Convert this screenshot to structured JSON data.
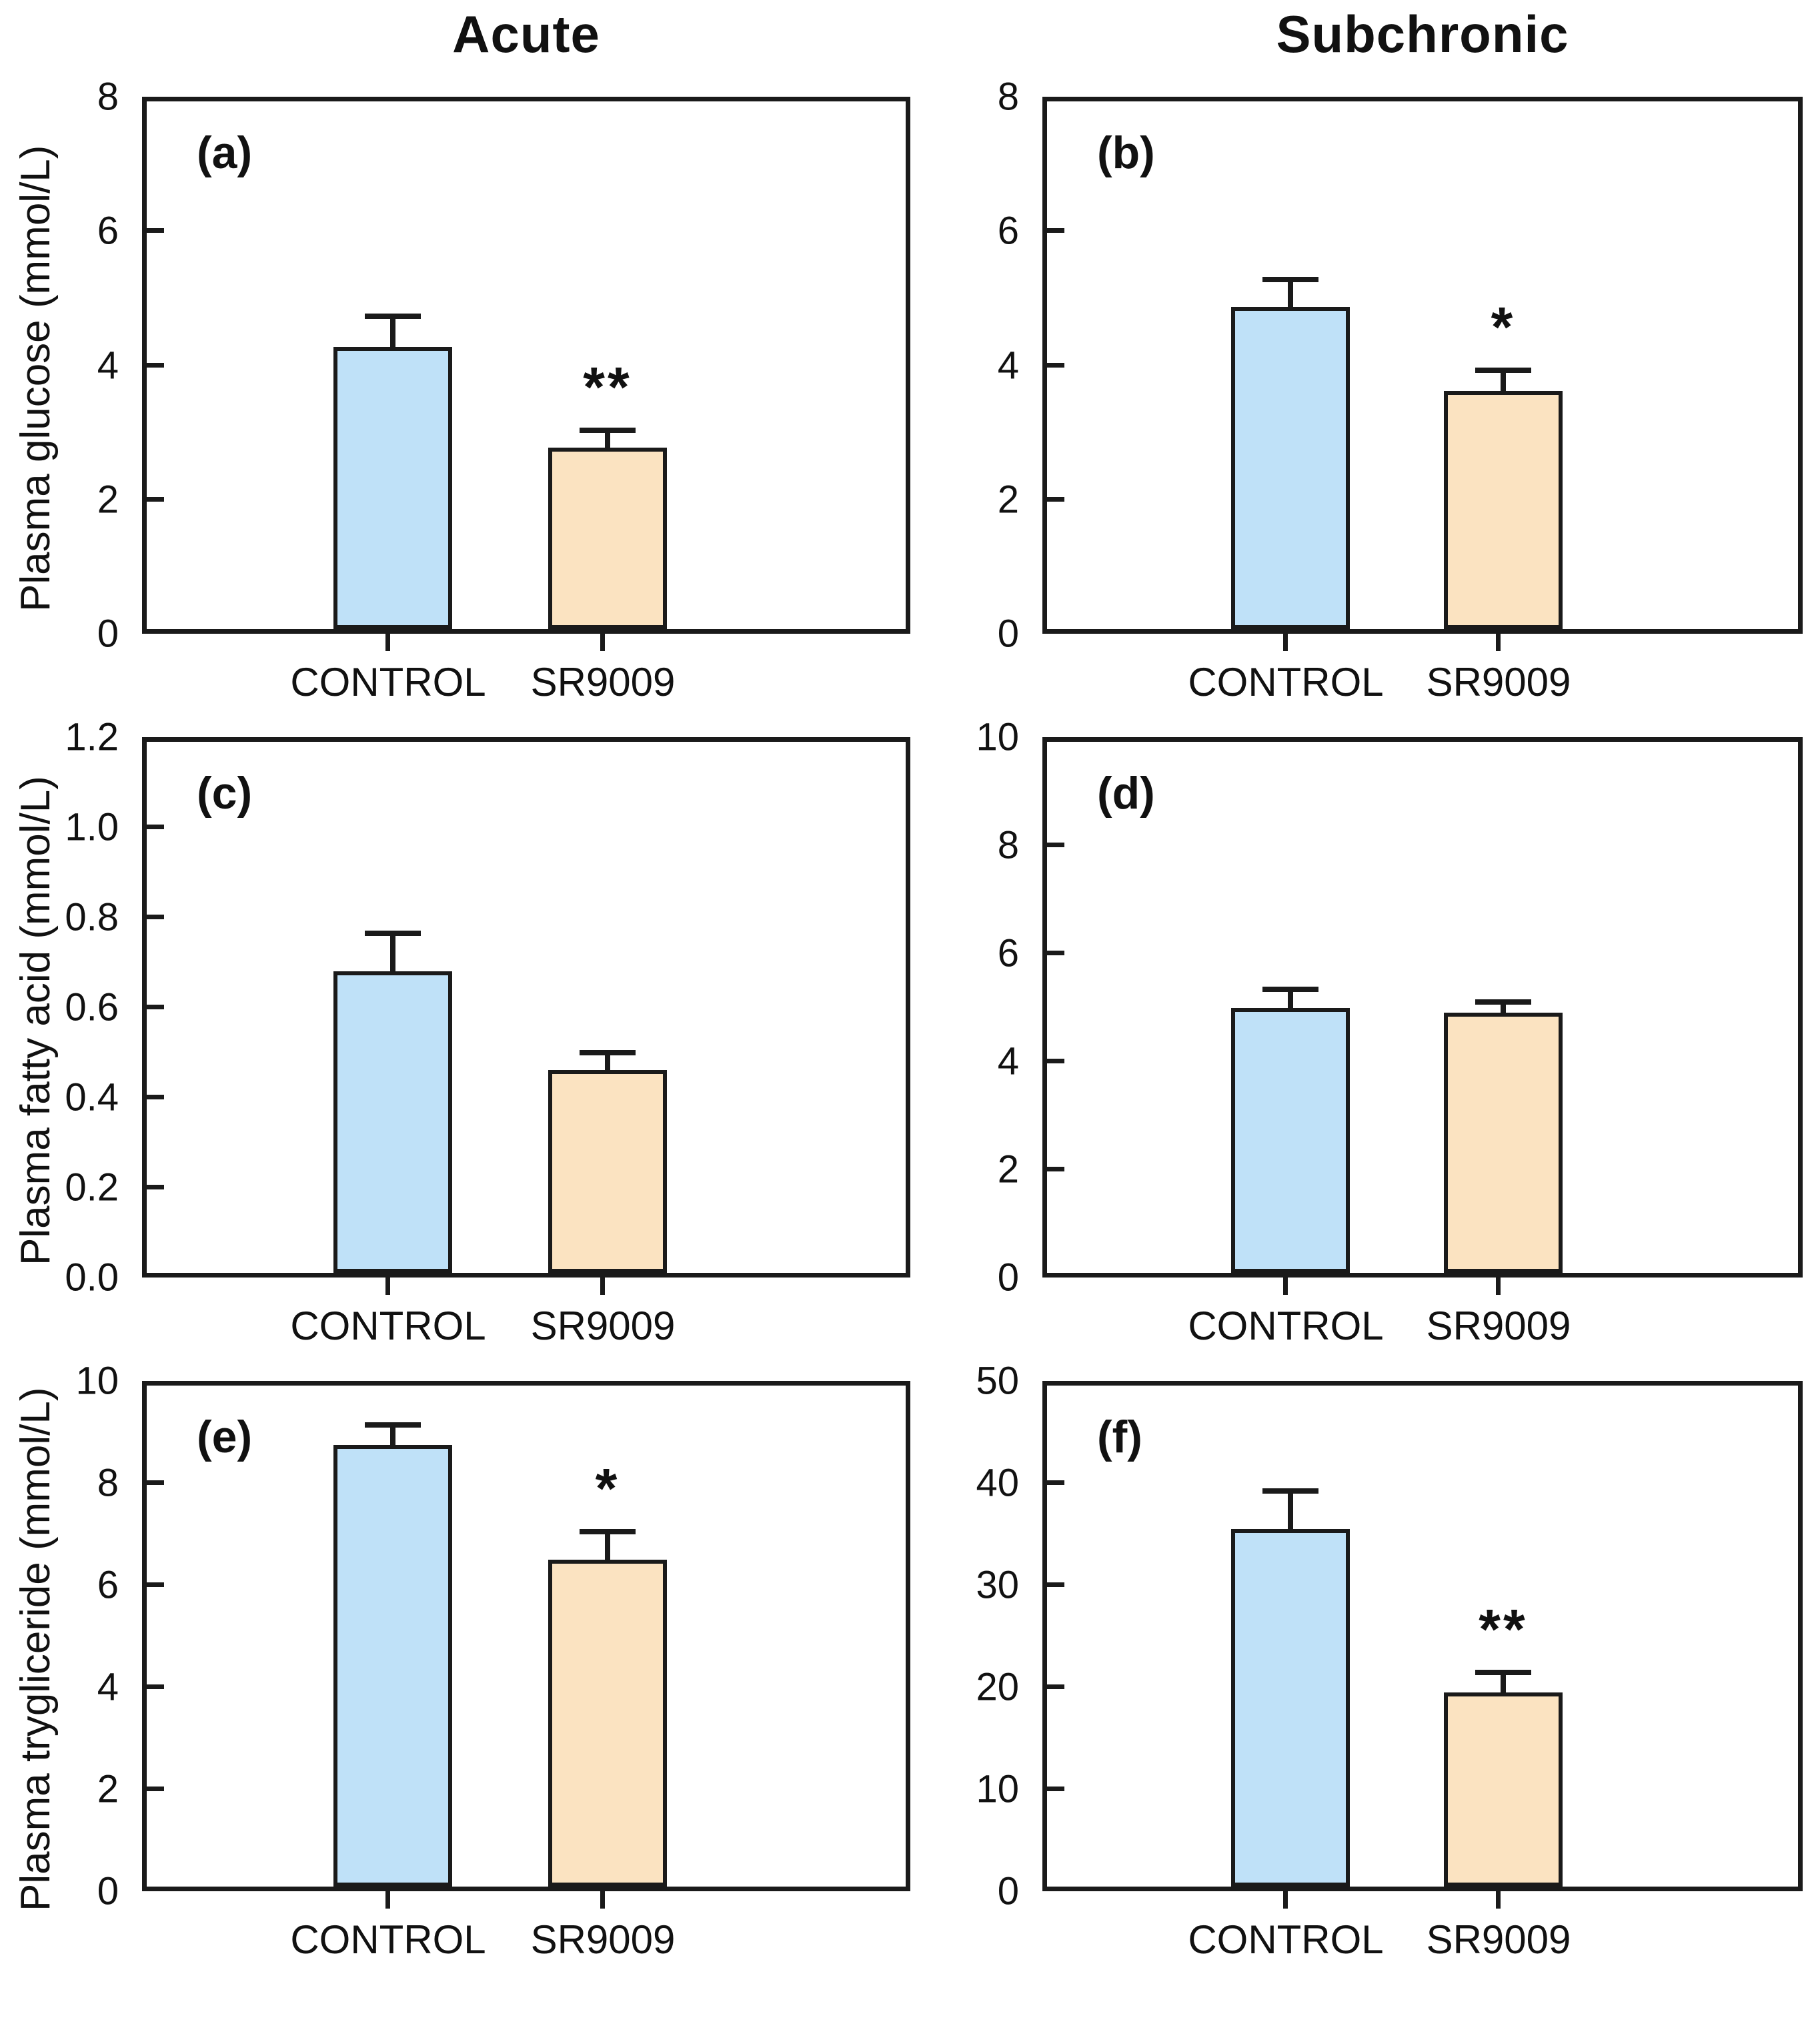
{
  "figure": {
    "column_titles": [
      "Acute",
      "Subchronic"
    ],
    "row_labels": [
      "Plasma glucose (mmol/L)",
      "Plasma fatty acid (mmol/L)",
      "Plasma trygliceride (mmol/L)"
    ],
    "categories": [
      "CONTROL",
      "SR9009"
    ],
    "colors": {
      "control_fill": "#bfe1f8",
      "treatment_fill": "#fbe3c1",
      "bar_border": "#1a1a1a",
      "text": "#111111",
      "background": "#ffffff"
    }
  },
  "chart_data": [
    {
      "type": "bar",
      "panel": "(a)",
      "column": "Acute",
      "row_label": "Plasma glucose (mmol/L)",
      "categories": [
        "CONTROL",
        "SR9009"
      ],
      "values": [
        4.2,
        2.7
      ],
      "errors": [
        0.5,
        0.3
      ],
      "ylim": [
        0,
        8
      ],
      "yticks": [
        0,
        2,
        4,
        6,
        8
      ],
      "ytick_labels": [
        "0",
        "2",
        "4",
        "6",
        "8"
      ],
      "significance": {
        "label": "**",
        "on_category": "SR9009"
      },
      "legend": "none",
      "grid": false,
      "row": 0,
      "col": 0
    },
    {
      "type": "bar",
      "panel": "(b)",
      "column": "Subchronic",
      "row_label": "Plasma glucose (mmol/L)",
      "categories": [
        "CONTROL",
        "SR9009"
      ],
      "values": [
        4.8,
        3.55
      ],
      "errors": [
        0.45,
        0.35
      ],
      "ylim": [
        0,
        8
      ],
      "yticks": [
        0,
        2,
        4,
        6,
        8
      ],
      "ytick_labels": [
        "0",
        "2",
        "4",
        "6",
        "8"
      ],
      "significance": {
        "label": "*",
        "on_category": "SR9009"
      },
      "legend": "none",
      "grid": false,
      "row": 0,
      "col": 1
    },
    {
      "type": "bar",
      "panel": "(c)",
      "column": "Acute",
      "row_label": "Plasma fatty acid (mmol/L)",
      "categories": [
        "CONTROL",
        "SR9009"
      ],
      "values": [
        0.67,
        0.45
      ],
      "errors": [
        0.09,
        0.045
      ],
      "ylim": [
        0,
        1.2
      ],
      "yticks": [
        0,
        0.2,
        0.4,
        0.6,
        0.8,
        1.0,
        1.2
      ],
      "ytick_labels": [
        "0.0",
        "0.2",
        "0.4",
        "0.6",
        "0.8",
        "1.0",
        "1.2"
      ],
      "significance": null,
      "legend": "none",
      "grid": false,
      "row": 1,
      "col": 0
    },
    {
      "type": "bar",
      "panel": "(d)",
      "column": "Subchronic",
      "row_label": "Plasma fatty acid (mmol/L)",
      "categories": [
        "CONTROL",
        "SR9009"
      ],
      "values": [
        4.9,
        4.82
      ],
      "errors": [
        0.4,
        0.25
      ],
      "ylim": [
        0,
        10
      ],
      "yticks": [
        0,
        2,
        4,
        6,
        8,
        10
      ],
      "ytick_labels": [
        "0",
        "2",
        "4",
        "6",
        "8",
        "10"
      ],
      "significance": null,
      "legend": "none",
      "grid": false,
      "row": 1,
      "col": 1
    },
    {
      "type": "bar",
      "panel": "(e)",
      "column": "Acute",
      "row_label": "Plasma trygliceride (mmol/L)",
      "categories": [
        "CONTROL",
        "SR9009"
      ],
      "values": [
        8.65,
        6.4
      ],
      "errors": [
        0.45,
        0.6
      ],
      "ylim": [
        0,
        10
      ],
      "yticks": [
        0,
        2,
        4,
        6,
        8,
        10
      ],
      "ytick_labels": [
        "0",
        "2",
        "4",
        "6",
        "8",
        "10"
      ],
      "significance": {
        "label": "*",
        "on_category": "SR9009"
      },
      "legend": "none",
      "grid": false,
      "row": 2,
      "col": 0
    },
    {
      "type": "bar",
      "panel": "(f)",
      "column": "Subchronic",
      "row_label": "Plasma trygliceride (mmol/L)",
      "categories": [
        "CONTROL",
        "SR9009"
      ],
      "values": [
        35,
        19
      ],
      "errors": [
        4,
        2.2
      ],
      "ylim": [
        0,
        50
      ],
      "yticks": [
        0,
        10,
        20,
        30,
        40,
        50
      ],
      "ytick_labels": [
        "0",
        "10",
        "20",
        "30",
        "40",
        "50"
      ],
      "significance": {
        "label": "**",
        "on_category": "SR9009"
      },
      "legend": "none",
      "grid": false,
      "row": 2,
      "col": 1
    }
  ]
}
